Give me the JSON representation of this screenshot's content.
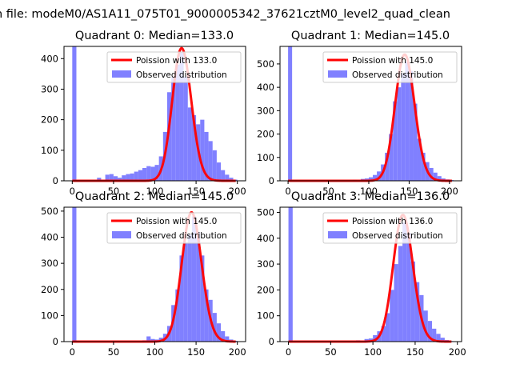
{
  "figure": {
    "suptitle": "n file: modeM0/AS1A11_075T01_9000005342_37621cztM0_level2_quad_clean"
  },
  "chart_data": [
    {
      "type": "bar",
      "title": "Quadrant 0: Median=133.0",
      "xlim": [
        -10,
        210
      ],
      "ylim": [
        0,
        440
      ],
      "xticks": [
        0,
        50,
        100,
        150,
        200
      ],
      "yticks": [
        0,
        100,
        200,
        300,
        400
      ],
      "legend_position": "top-right",
      "series": [
        {
          "name": "Poission with 133.0",
          "kind": "line",
          "color": "#ff0000",
          "mu": 133.0,
          "peak": 434
        },
        {
          "name": "Observed distribution",
          "kind": "hist",
          "color": "#8080ff",
          "x": [
            0,
            30,
            40,
            45,
            50,
            55,
            60,
            65,
            70,
            75,
            80,
            85,
            90,
            95,
            100,
            105,
            110,
            115,
            120,
            125,
            130,
            135,
            140,
            145,
            150,
            155,
            160,
            165,
            170,
            175,
            180,
            185,
            190,
            195
          ],
          "values": [
            440,
            10,
            20,
            22,
            15,
            10,
            18,
            22,
            24,
            30,
            35,
            42,
            48,
            46,
            52,
            80,
            160,
            290,
            340,
            380,
            420,
            340,
            240,
            215,
            185,
            200,
            160,
            130,
            100,
            60,
            35,
            20,
            10,
            4
          ]
        }
      ]
    },
    {
      "type": "bar",
      "title": "Quadrant 1: Median=145.0",
      "xlim": [
        -10,
        215
      ],
      "ylim": [
        0,
        575
      ],
      "xticks": [
        0,
        50,
        100,
        150,
        200
      ],
      "yticks": [
        0,
        100,
        200,
        300,
        400,
        500
      ],
      "legend_position": "top-right",
      "series": [
        {
          "name": "Poission with 145.0",
          "kind": "line",
          "color": "#ff0000",
          "mu": 145.0,
          "peak": 540
        },
        {
          "name": "Observed distribution",
          "kind": "hist",
          "color": "#8080ff",
          "x": [
            0,
            80,
            90,
            95,
            100,
            105,
            110,
            115,
            120,
            125,
            130,
            135,
            140,
            145,
            150,
            155,
            160,
            165,
            170,
            175,
            180,
            185,
            190,
            195,
            200,
            205
          ],
          "values": [
            575,
            5,
            8,
            10,
            15,
            25,
            40,
            70,
            120,
            200,
            340,
            400,
            460,
            510,
            470,
            330,
            180,
            120,
            80,
            55,
            35,
            20,
            10,
            6,
            3,
            1
          ]
        }
      ]
    },
    {
      "type": "bar",
      "title": "Quadrant 2: Median=145.0",
      "xlim": [
        -10,
        210
      ],
      "ylim": [
        0,
        515
      ],
      "xticks": [
        0,
        50,
        100,
        150,
        200
      ],
      "yticks": [
        0,
        100,
        200,
        300,
        400,
        500
      ],
      "legend_position": "top-right",
      "series": [
        {
          "name": "Poission with 145.0",
          "kind": "line",
          "color": "#ff0000",
          "mu": 145.0,
          "peak": 495
        },
        {
          "name": "Observed distribution",
          "kind": "hist",
          "color": "#8080ff",
          "x": [
            0,
            85,
            90,
            95,
            100,
            105,
            110,
            115,
            120,
            125,
            130,
            135,
            140,
            145,
            150,
            155,
            160,
            165,
            170,
            175,
            180,
            185,
            190,
            195
          ],
          "values": [
            515,
            5,
            20,
            10,
            8,
            15,
            30,
            60,
            140,
            200,
            330,
            380,
            410,
            480,
            420,
            330,
            200,
            160,
            110,
            70,
            40,
            20,
            8,
            3
          ]
        }
      ]
    },
    {
      "type": "bar",
      "title": "Quadrant 3: Median=136.0",
      "xlim": [
        -10,
        205
      ],
      "ylim": [
        0,
        520
      ],
      "xticks": [
        0,
        50,
        100,
        150,
        200
      ],
      "yticks": [
        0,
        100,
        200,
        300,
        400,
        500
      ],
      "legend_position": "top-right",
      "series": [
        {
          "name": "Poission with 136.0",
          "kind": "line",
          "color": "#ff0000",
          "mu": 136.0,
          "peak": 490
        },
        {
          "name": "Observed distribution",
          "kind": "hist",
          "color": "#8080ff",
          "x": [
            0,
            80,
            90,
            95,
            100,
            105,
            110,
            115,
            120,
            125,
            130,
            135,
            140,
            145,
            150,
            155,
            160,
            165,
            170,
            175,
            180,
            185,
            190
          ],
          "values": [
            520,
            5,
            10,
            12,
            25,
            40,
            60,
            110,
            200,
            300,
            370,
            460,
            420,
            310,
            230,
            180,
            120,
            80,
            50,
            30,
            15,
            6,
            2
          ]
        }
      ]
    }
  ]
}
